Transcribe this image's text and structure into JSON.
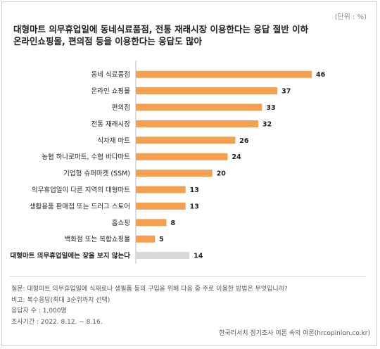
{
  "unit_label": "(단위 : %)",
  "title": "대형마트 의무휴업일에 동네식료품점, 전통 재래시장 이용한다는 응답 절반 이하\n온라인쇼핑몰, 편의점 등을 이용한다는 응답도 많아",
  "notes": {
    "question": "질문: 대형마트 의무휴업일에 식재료나 생필품 등의 구입을 위해 다음 중 주로 이용한 방법은 무엇입니까?",
    "remark": "비고: 복수응답(최대 3순위까지 선택)",
    "respondents": "응답자 수 : 1,000명",
    "period": "조사기간 : 2022. 8.12. ~ 8.16."
  },
  "source": "한국리서치 정기조사 여론 속의 여론(hrcopinion.co.kr)",
  "colors": {
    "bar": "#f4a04e",
    "bar_highlight": "#d9d9d9"
  },
  "chart_data": {
    "type": "bar",
    "orientation": "horizontal",
    "categories": [
      "동네 식료품점",
      "온라인 쇼핑몰",
      "편의점",
      "전통 재래시장",
      "식자재 마트",
      "농협 하나로마트, 수협 바다마트",
      "기업형 슈퍼마켓 (SSM)",
      "의무휴업일이 다른 지역의 대형마트",
      "생활용품 판매점 또는 드러그 스토어",
      "홈쇼핑",
      "백화점 또는 복합쇼핑몰",
      "대형마트 의무휴업일에는 장을 보지 않는다"
    ],
    "values": [
      46,
      37,
      33,
      32,
      26,
      24,
      20,
      13,
      13,
      8,
      5,
      14
    ],
    "highlight_index": 11,
    "xlim": [
      0,
      46
    ],
    "grid": false,
    "legend": "none"
  }
}
